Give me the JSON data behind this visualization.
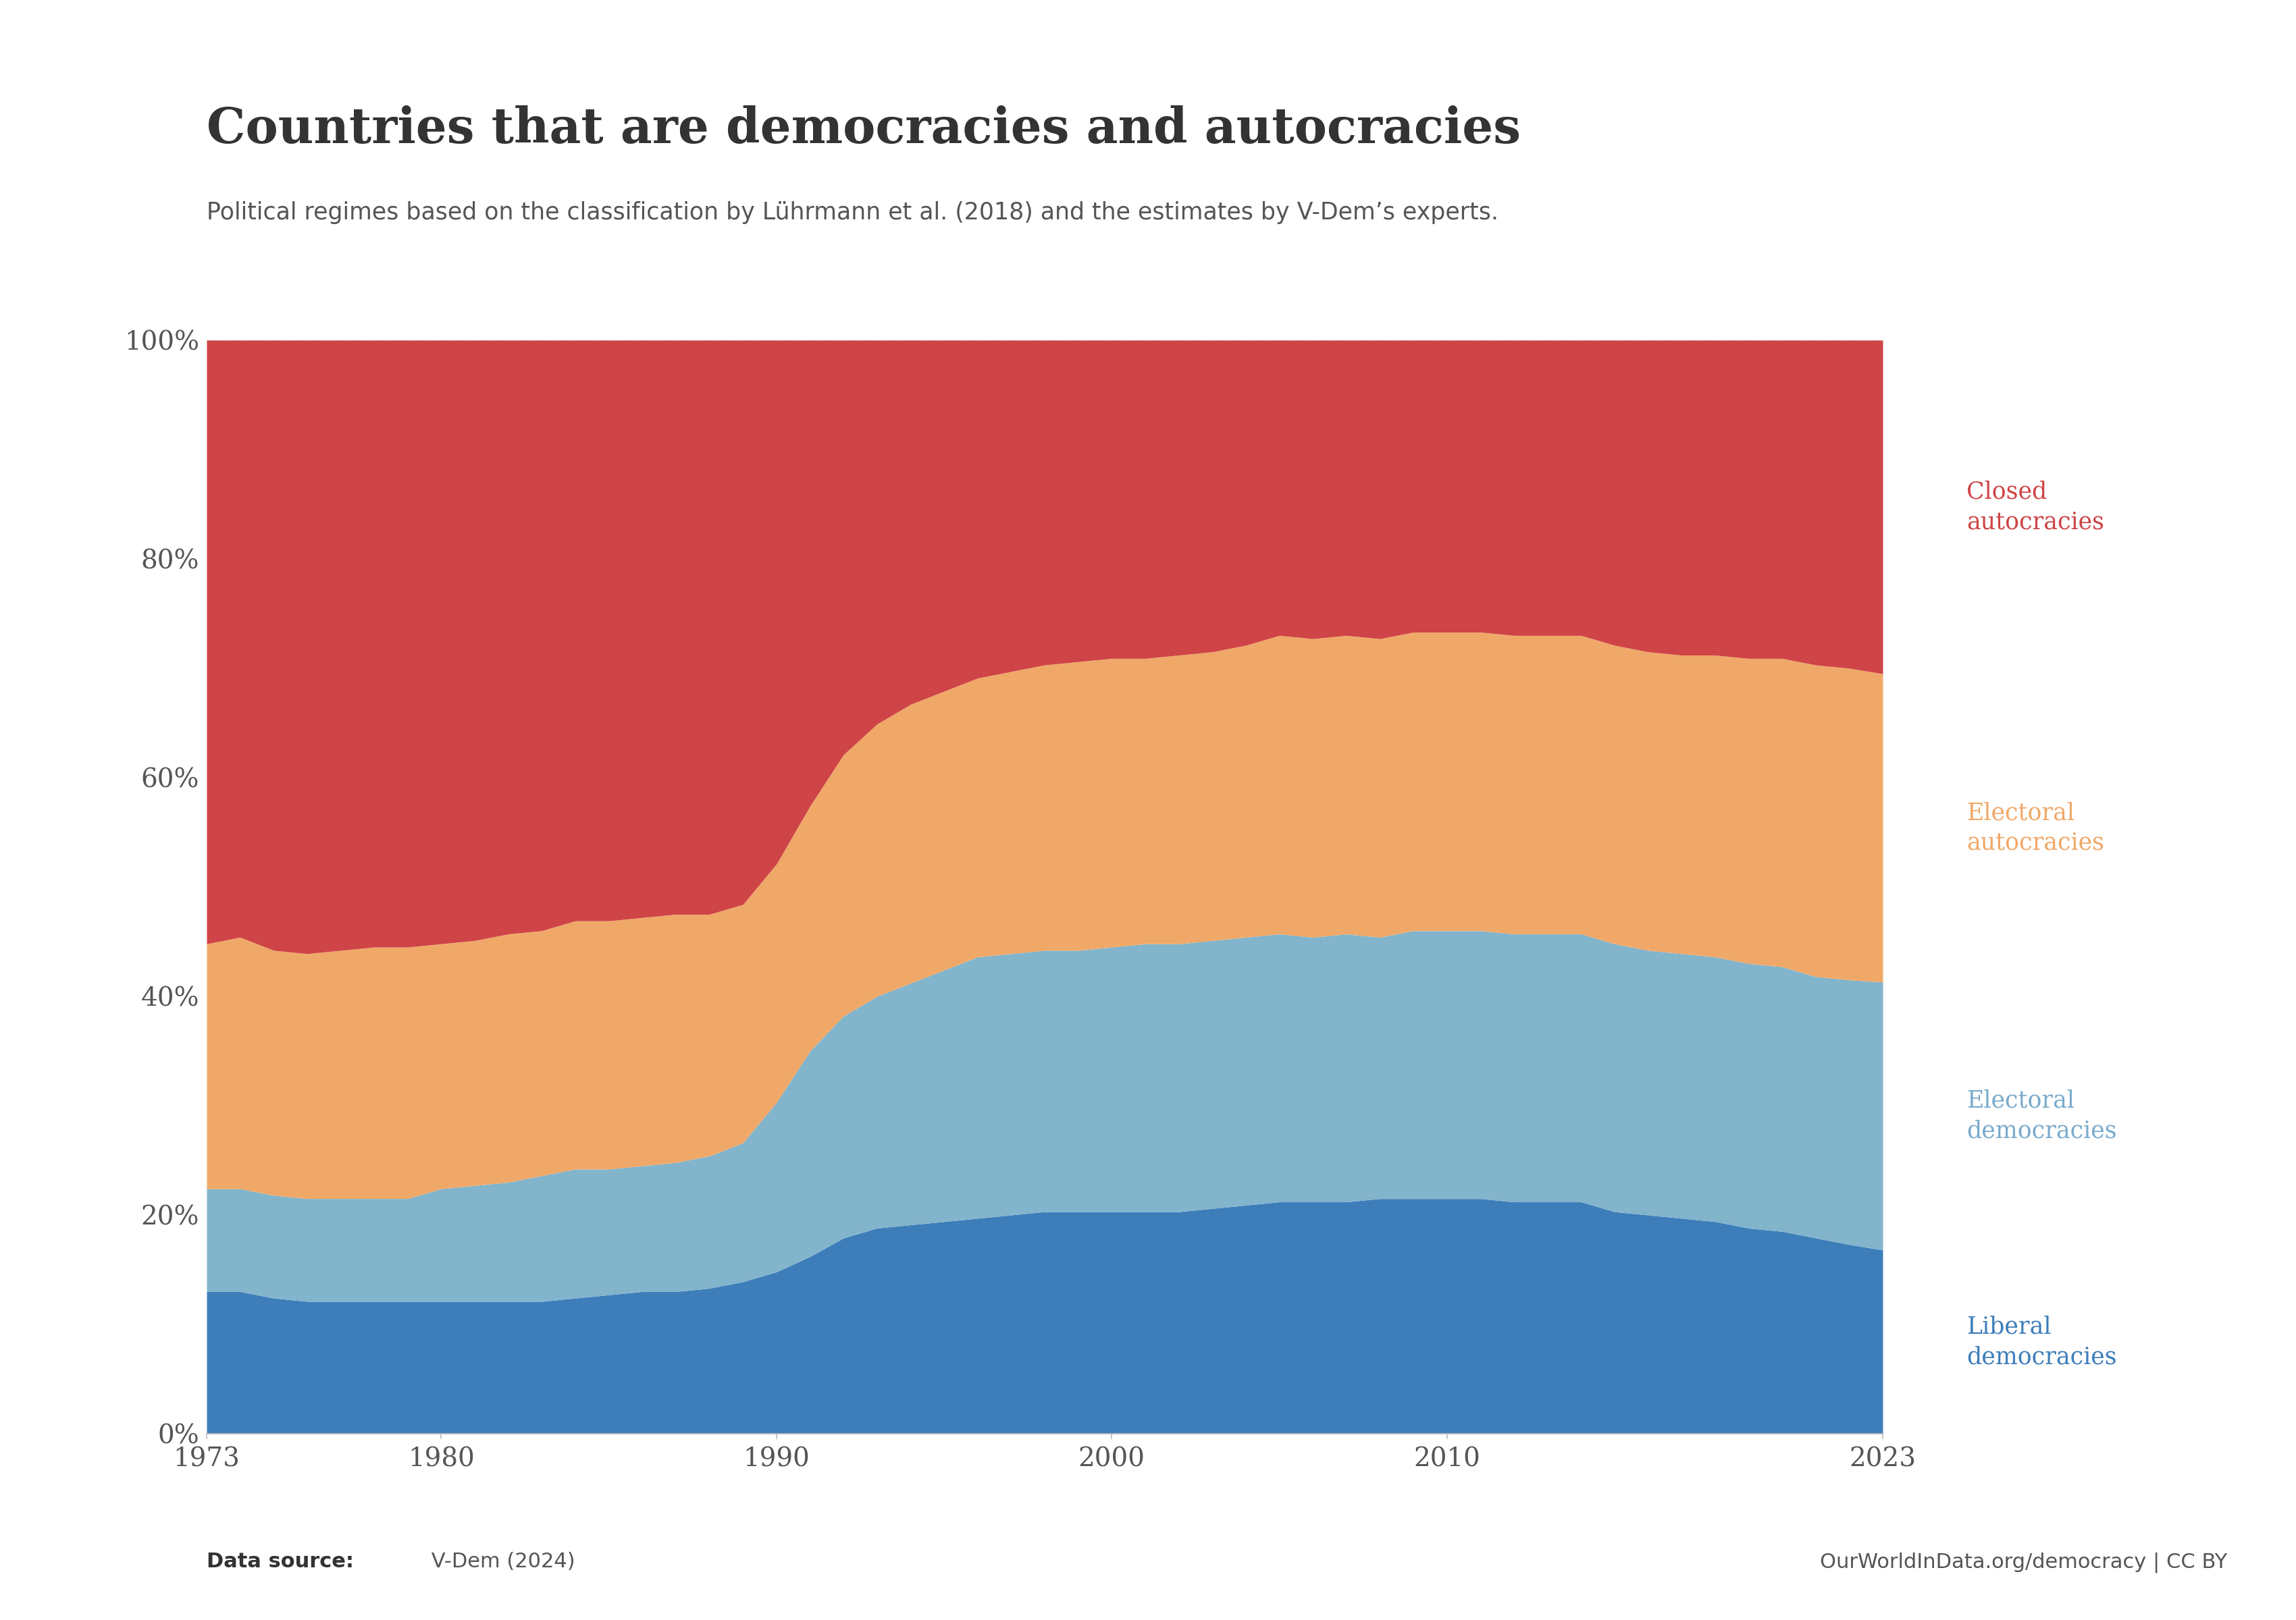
{
  "title": "Countries that are democracies and autocracies",
  "subtitle": "Political regimes based on the classification by Lührmann et al. (2018) and the estimates by V-Dem’s experts.",
  "source_left_bold": "Data source:",
  "source_left_normal": " V-Dem (2024)",
  "source_right": "OurWorldInData.org/democracy | CC BY",
  "years": [
    1973,
    1974,
    1975,
    1976,
    1977,
    1978,
    1979,
    1980,
    1981,
    1982,
    1983,
    1984,
    1985,
    1986,
    1987,
    1988,
    1989,
    1990,
    1991,
    1992,
    1993,
    1994,
    1995,
    1996,
    1997,
    1998,
    1999,
    2000,
    2001,
    2002,
    2003,
    2004,
    2005,
    2006,
    2007,
    2008,
    2009,
    2010,
    2011,
    2012,
    2013,
    2014,
    2015,
    2016,
    2017,
    2018,
    2019,
    2020,
    2021,
    2022,
    2023
  ],
  "liberal_democracies": [
    0.13,
    0.13,
    0.124,
    0.121,
    0.121,
    0.121,
    0.121,
    0.121,
    0.121,
    0.121,
    0.121,
    0.124,
    0.127,
    0.13,
    0.13,
    0.133,
    0.139,
    0.148,
    0.162,
    0.179,
    0.188,
    0.191,
    0.194,
    0.197,
    0.2,
    0.203,
    0.203,
    0.203,
    0.203,
    0.203,
    0.206,
    0.209,
    0.212,
    0.212,
    0.212,
    0.215,
    0.215,
    0.215,
    0.215,
    0.212,
    0.212,
    0.212,
    0.203,
    0.2,
    0.197,
    0.194,
    0.188,
    0.185,
    0.179,
    0.173,
    0.168
  ],
  "electoral_democracies": [
    0.094,
    0.094,
    0.094,
    0.094,
    0.094,
    0.094,
    0.094,
    0.103,
    0.106,
    0.109,
    0.115,
    0.118,
    0.115,
    0.115,
    0.118,
    0.121,
    0.127,
    0.155,
    0.188,
    0.203,
    0.212,
    0.221,
    0.23,
    0.239,
    0.239,
    0.239,
    0.239,
    0.242,
    0.245,
    0.245,
    0.245,
    0.245,
    0.245,
    0.242,
    0.245,
    0.239,
    0.245,
    0.245,
    0.245,
    0.245,
    0.245,
    0.245,
    0.245,
    0.242,
    0.242,
    0.242,
    0.242,
    0.242,
    0.239,
    0.242,
    0.245
  ],
  "electoral_autocracies": [
    0.224,
    0.23,
    0.224,
    0.224,
    0.227,
    0.23,
    0.23,
    0.224,
    0.224,
    0.227,
    0.224,
    0.227,
    0.227,
    0.227,
    0.227,
    0.221,
    0.218,
    0.218,
    0.224,
    0.239,
    0.249,
    0.255,
    0.255,
    0.255,
    0.258,
    0.261,
    0.264,
    0.264,
    0.261,
    0.264,
    0.264,
    0.267,
    0.273,
    0.273,
    0.273,
    0.273,
    0.273,
    0.273,
    0.273,
    0.273,
    0.273,
    0.273,
    0.273,
    0.273,
    0.273,
    0.276,
    0.279,
    0.282,
    0.285,
    0.285,
    0.282
  ],
  "closed_autocracies": [
    0.552,
    0.546,
    0.558,
    0.561,
    0.558,
    0.555,
    0.555,
    0.552,
    0.549,
    0.543,
    0.54,
    0.531,
    0.531,
    0.528,
    0.525,
    0.525,
    0.516,
    0.479,
    0.426,
    0.379,
    0.351,
    0.333,
    0.321,
    0.309,
    0.303,
    0.297,
    0.294,
    0.291,
    0.291,
    0.288,
    0.285,
    0.279,
    0.27,
    0.273,
    0.27,
    0.273,
    0.267,
    0.267,
    0.267,
    0.27,
    0.27,
    0.27,
    0.279,
    0.285,
    0.288,
    0.288,
    0.291,
    0.291,
    0.297,
    0.3,
    0.305
  ],
  "colors": {
    "liberal_democracies": "#3d7eba",
    "electoral_democracies": "#82b4cc",
    "electoral_autocracies": "#f0a868",
    "closed_autocracies": "#cf4446"
  },
  "labels": {
    "liberal_democracies": "Liberal\ndemocracies",
    "electoral_democracies": "Electoral\ndemocracies",
    "electoral_autocracies": "Electoral\nautocracies",
    "closed_autocracies": "Closed\nautocracies"
  },
  "logo_bg": "#1a3a5c",
  "ytick_labels": [
    "0%",
    "20%",
    "40%",
    "60%",
    "80%",
    "100%"
  ],
  "xtick_years": [
    1973,
    1980,
    1990,
    2000,
    2010,
    2023
  ]
}
